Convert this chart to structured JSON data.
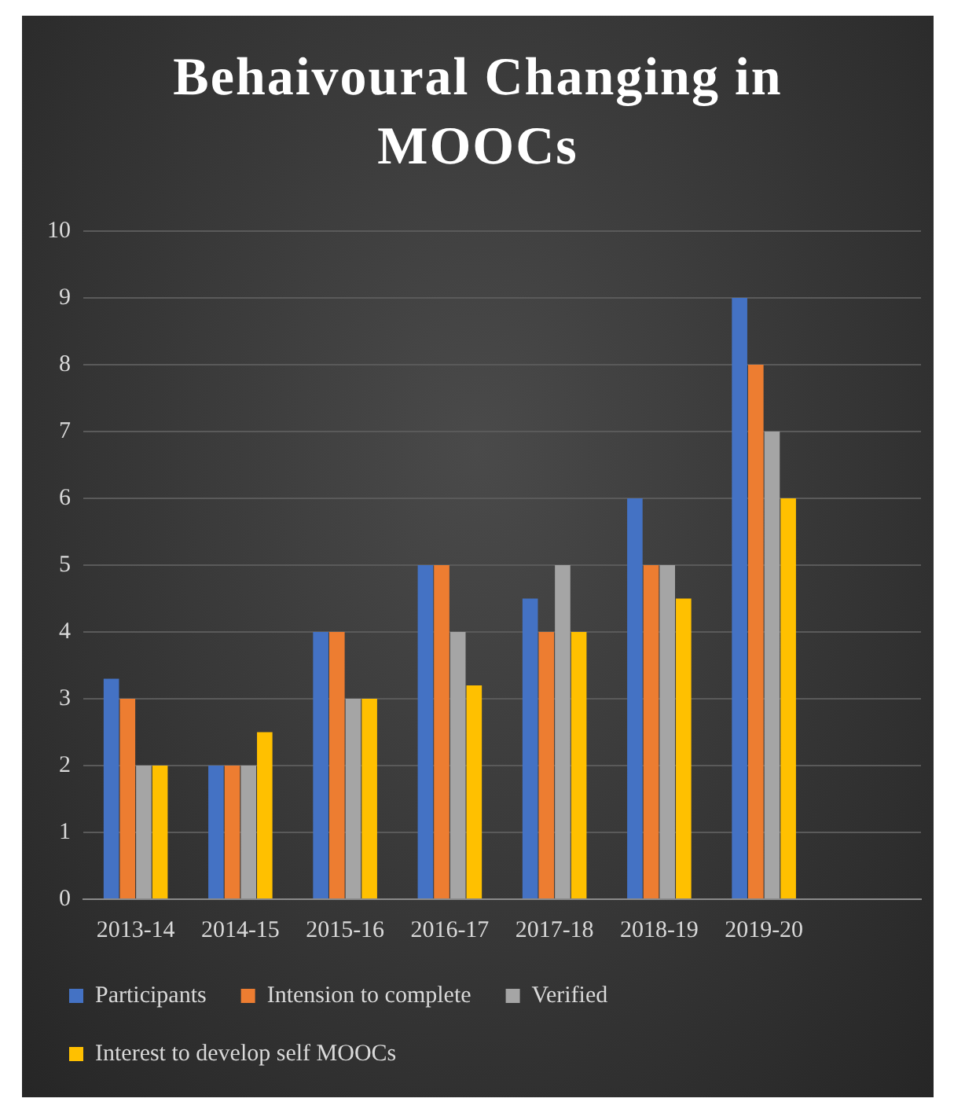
{
  "chart_data": {
    "type": "bar",
    "title": "Behaivoural Changing in MOOCs",
    "categories": [
      "2013-14",
      "2014-15",
      "2015-16",
      "2016-17",
      "2017-18",
      "2018-19",
      "2019-20",
      null
    ],
    "series": [
      {
        "name": "Participants",
        "color": "#4472c4",
        "values": [
          3.3,
          2,
          4,
          5,
          4.5,
          6,
          9,
          null
        ]
      },
      {
        "name": "Intension to complete",
        "color": "#ed7d31",
        "values": [
          3,
          2,
          4,
          5,
          4,
          5,
          8,
          null
        ]
      },
      {
        "name": "Verified",
        "color": "#a5a5a5",
        "values": [
          2,
          2,
          3,
          4,
          5,
          5,
          7,
          null
        ]
      },
      {
        "name": "Interest to develop self MOOCs",
        "color": "#ffc000",
        "values": [
          2,
          2.5,
          3,
          3.2,
          4,
          4.5,
          6,
          null
        ]
      }
    ],
    "ylim": [
      0,
      10
    ],
    "yticks": [
      0,
      1,
      2,
      3,
      4,
      5,
      6,
      7,
      8,
      9,
      10
    ],
    "grid": "y",
    "legend": "bottom"
  }
}
